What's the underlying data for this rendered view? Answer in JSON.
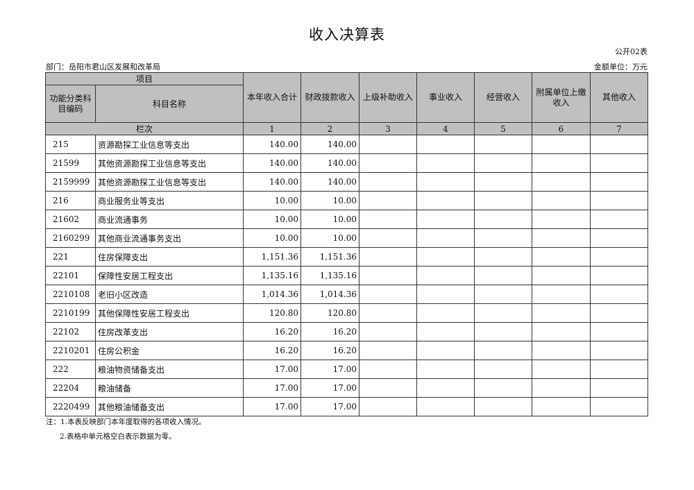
{
  "title": "收入决算表",
  "form_no": "公开02表",
  "department": "部门：岳阳市君山区发展和改革局",
  "unit": "金额单位：万元",
  "header": {
    "project": "项目",
    "code": "功能分类科目编码",
    "name": "科目名称",
    "row_label": "栏次",
    "columns": [
      "本年收入合计",
      "财政拨款收入",
      "上级补助收入",
      "事业收入",
      "经营收入",
      "附属单位上缴收入",
      "其他收入"
    ],
    "col_numbers": [
      "1",
      "2",
      "3",
      "4",
      "5",
      "6",
      "7"
    ]
  },
  "rows": [
    {
      "code": "215",
      "name": "资源勘探工业信息等支出",
      "c1": "140.00",
      "c2": "140.00"
    },
    {
      "code": "21599",
      "name": "其他资源勘探工业信息等支出",
      "c1": "140.00",
      "c2": "140.00"
    },
    {
      "code": "2159999",
      "name": "其他资源勘探工业信息等支出",
      "c1": "140.00",
      "c2": "140.00"
    },
    {
      "code": "216",
      "name": "商业服务业等支出",
      "c1": "10.00",
      "c2": "10.00"
    },
    {
      "code": "21602",
      "name": "商业流通事务",
      "c1": "10.00",
      "c2": "10.00"
    },
    {
      "code": "2160299",
      "name": "其他商业流通事务支出",
      "c1": "10.00",
      "c2": "10.00"
    },
    {
      "code": "221",
      "name": "住房保障支出",
      "c1": "1,151.36",
      "c2": "1,151.36"
    },
    {
      "code": "22101",
      "name": "保障性安居工程支出",
      "c1": "1,135.16",
      "c2": "1,135.16"
    },
    {
      "code": "2210108",
      "name": "老旧小区改造",
      "c1": "1,014.36",
      "c2": "1,014.36"
    },
    {
      "code": "2210199",
      "name": "其他保障性安居工程支出",
      "c1": "120.80",
      "c2": "120.80"
    },
    {
      "code": "22102",
      "name": "住房改革支出",
      "c1": "16.20",
      "c2": "16.20"
    },
    {
      "code": "2210201",
      "name": "住房公积金",
      "c1": "16.20",
      "c2": "16.20"
    },
    {
      "code": "222",
      "name": "粮油物资储备支出",
      "c1": "17.00",
      "c2": "17.00"
    },
    {
      "code": "22204",
      "name": "粮油储备",
      "c1": "17.00",
      "c2": "17.00"
    },
    {
      "code": "2220499",
      "name": "其他粮油储备支出",
      "c1": "17.00",
      "c2": "17.00"
    }
  ],
  "notes": [
    "注：1.本表反映部门本年度取得的各项收入情况。",
    "2.表格中单元格空白表示数据为零。"
  ]
}
